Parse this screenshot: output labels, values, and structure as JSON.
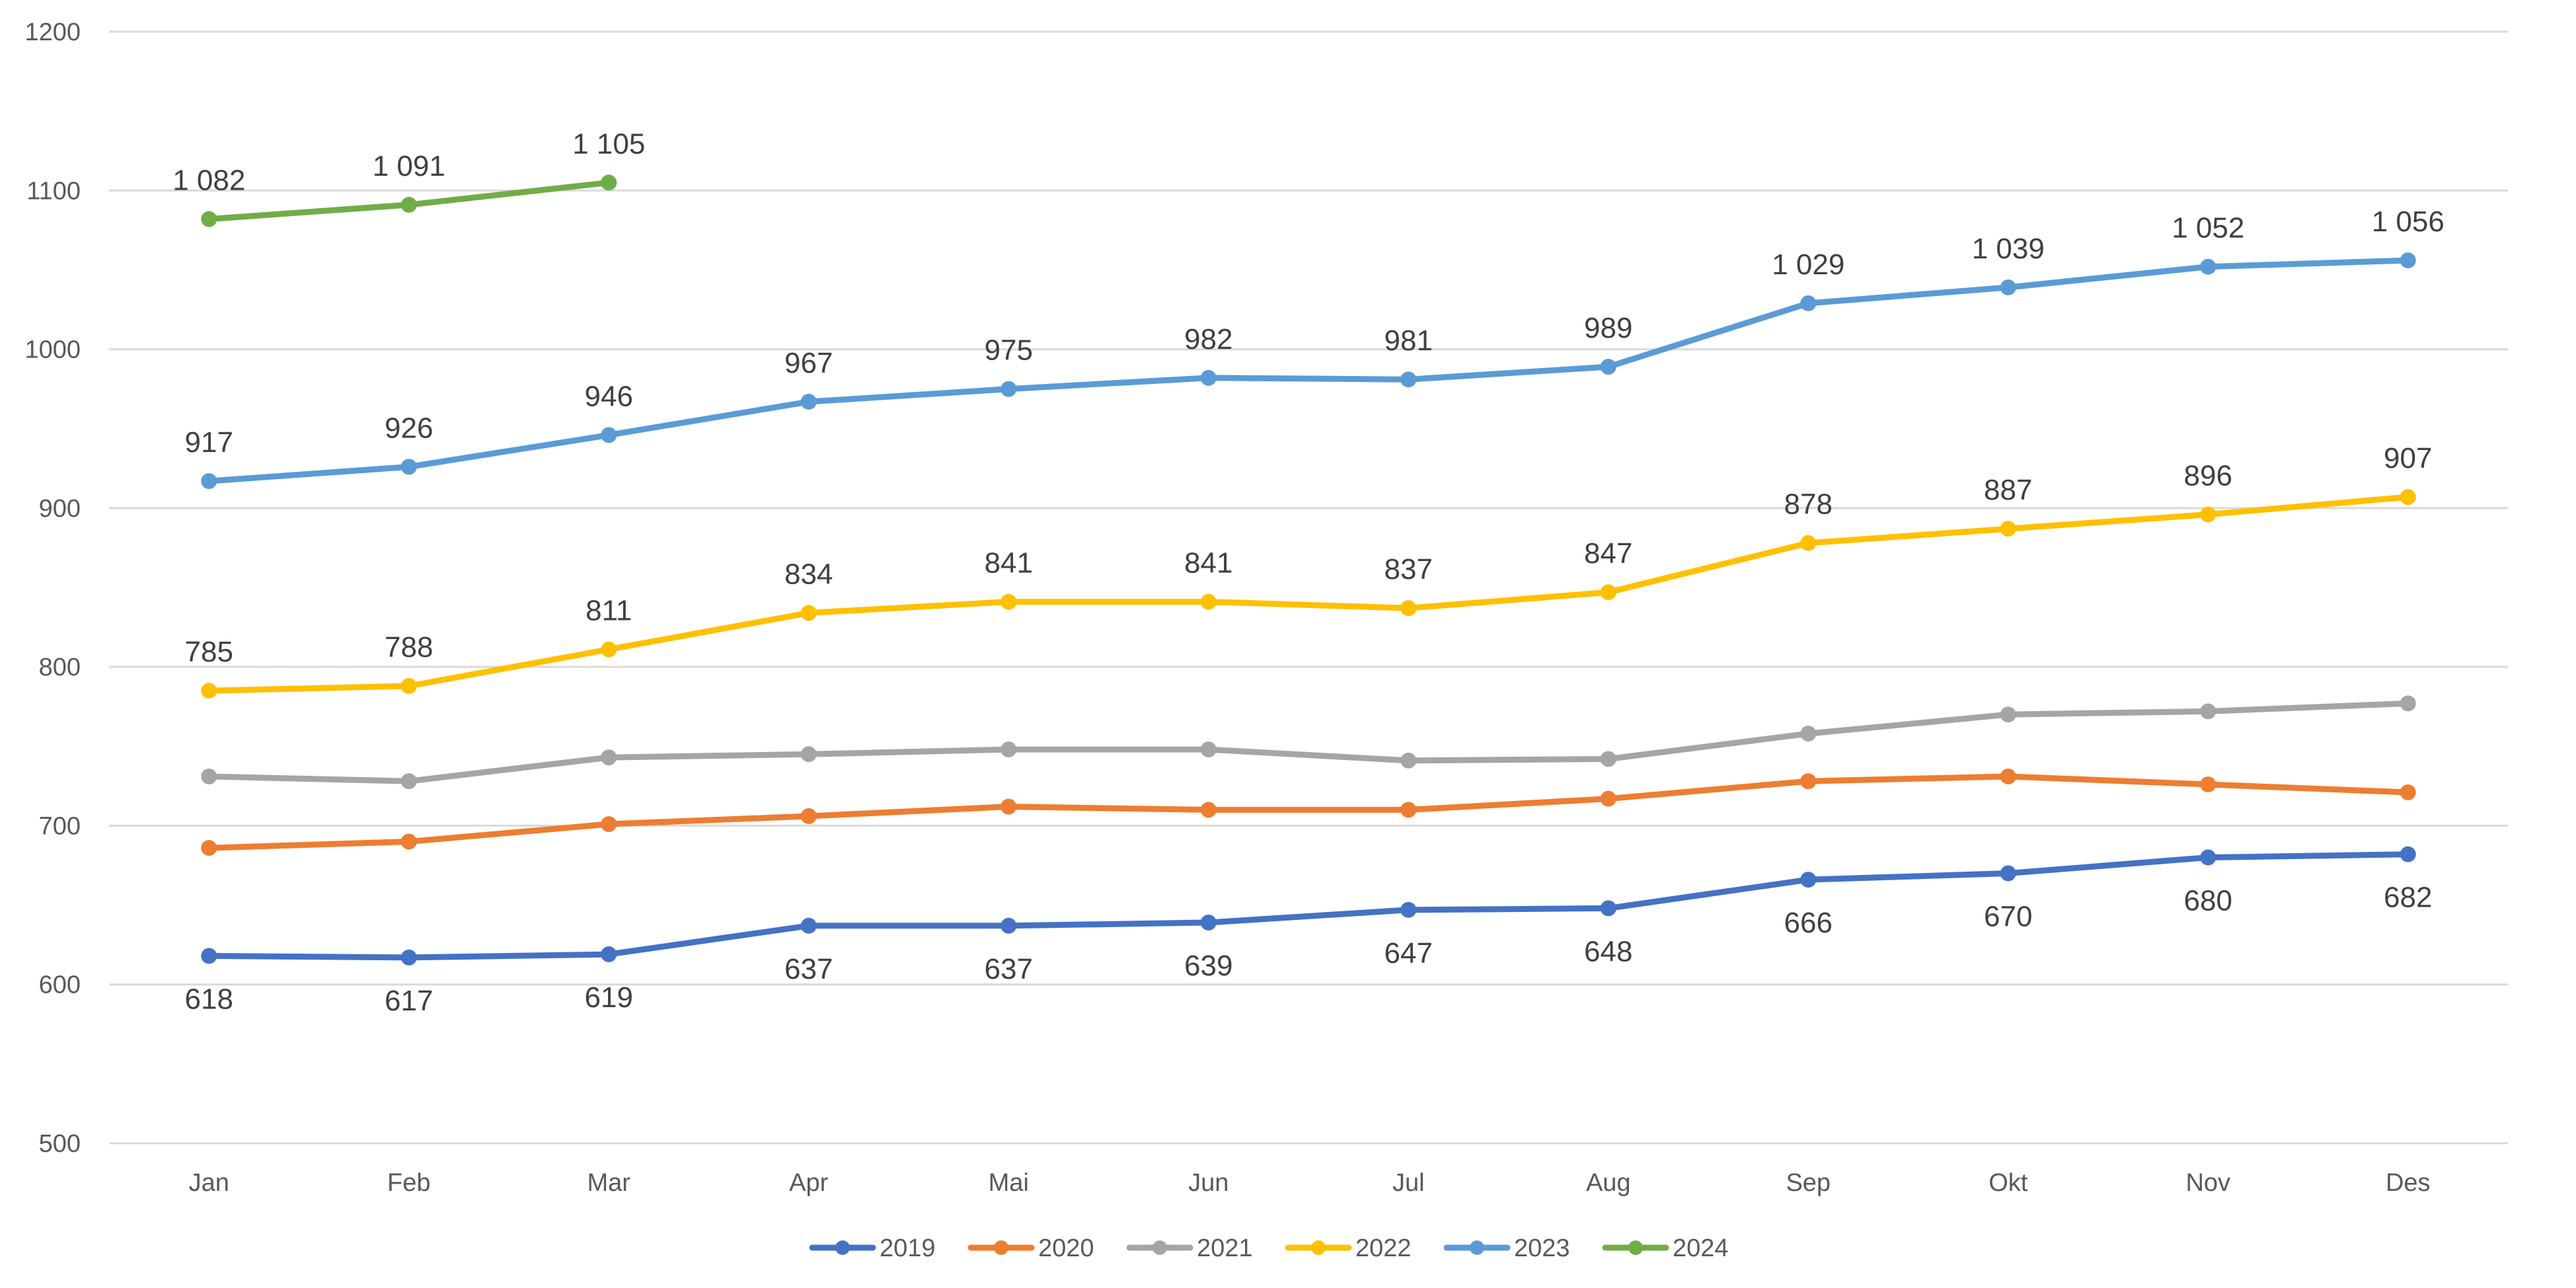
{
  "chart_data": {
    "type": "line",
    "title": "",
    "xlabel": "",
    "ylabel": "",
    "ylim": [
      500,
      1200
    ],
    "yticks": [
      500,
      600,
      700,
      800,
      900,
      1000,
      1100,
      1200
    ],
    "grid": true,
    "legend_position": "bottom",
    "categories": [
      "Jan",
      "Feb",
      "Mar",
      "Apr",
      "Mai",
      "Jun",
      "Jul",
      "Aug",
      "Sep",
      "Okt",
      "Nov",
      "Des"
    ],
    "series": [
      {
        "name": "2019",
        "color": "#4472c4",
        "values": [
          618,
          617,
          619,
          637,
          637,
          639,
          647,
          648,
          666,
          670,
          680,
          682
        ],
        "labels": [
          "618",
          "617",
          "619",
          "637",
          "637",
          "639",
          "647",
          "648",
          "666",
          "670",
          "680",
          "682"
        ],
        "label_position": "below"
      },
      {
        "name": "2020",
        "color": "#ed7d31",
        "values": [
          686,
          690,
          701,
          706,
          712,
          710,
          710,
          717,
          728,
          731,
          726,
          721
        ],
        "labels": null,
        "label_position": "none"
      },
      {
        "name": "2021",
        "color": "#a5a5a5",
        "values": [
          731,
          728,
          743,
          745,
          748,
          748,
          741,
          742,
          758,
          770,
          772,
          777
        ],
        "labels": null,
        "label_position": "none"
      },
      {
        "name": "2022",
        "color": "#ffc000",
        "values": [
          785,
          788,
          811,
          834,
          841,
          841,
          837,
          847,
          878,
          887,
          896,
          907
        ],
        "labels": [
          "785",
          "788",
          "811",
          "834",
          "841",
          "841",
          "837",
          "847",
          "878",
          "887",
          "896",
          "907"
        ],
        "label_position": "above"
      },
      {
        "name": "2023",
        "color": "#5b9bd5",
        "values": [
          917,
          926,
          946,
          967,
          975,
          982,
          981,
          989,
          1029,
          1039,
          1052,
          1056
        ],
        "labels": [
          "917",
          "926",
          "946",
          "967",
          "975",
          "982",
          "981",
          "989",
          "1 029",
          "1 039",
          "1 052",
          "1 056"
        ],
        "label_position": "above"
      },
      {
        "name": "2024",
        "color": "#70ad47",
        "values": [
          1082,
          1091,
          1105,
          null,
          null,
          null,
          null,
          null,
          null,
          null,
          null,
          null
        ],
        "labels": [
          "1 082",
          "1 091",
          "1 105",
          null,
          null,
          null,
          null,
          null,
          null,
          null,
          null,
          null
        ],
        "label_position": "above"
      }
    ]
  }
}
